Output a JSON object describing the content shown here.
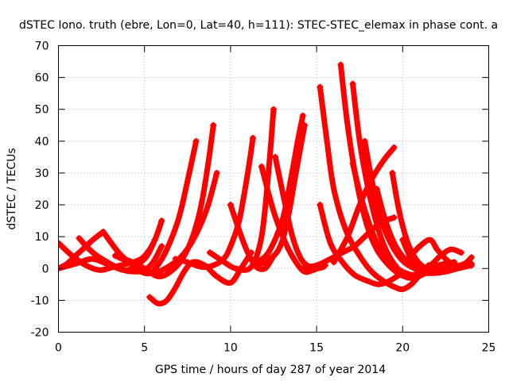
{
  "chart_data": {
    "type": "scatter",
    "title": "dSTEC Iono. truth (ebre, Lon=0, Lat=40, h=111): STEC-STEC_elemax in phase cont. a",
    "xlabel": "GPS time / hours of day 287 of year 2014",
    "ylabel": "dSTEC  / TECUs",
    "xlim": [
      0,
      25
    ],
    "ylim": [
      -20,
      70
    ],
    "xticks": [
      0,
      5,
      10,
      15,
      20,
      25
    ],
    "yticks": [
      -20,
      -10,
      0,
      10,
      20,
      30,
      40,
      50,
      60,
      70
    ],
    "grid": true,
    "legend": "none",
    "marker": "+",
    "color": "#ff0000",
    "series": [
      {
        "x": [
          0.0,
          1.0,
          2.0,
          3.0,
          4.0,
          5.0,
          5.6,
          6.0
        ],
        "y": [
          0,
          1.5,
          3.0,
          1.0,
          -0.5,
          3.0,
          9.0,
          15.0
        ]
      },
      {
        "x": [
          0.0,
          0.8,
          1.6,
          2.4,
          3.2,
          4.0,
          4.8,
          5.3,
          5.6
        ],
        "y": [
          8.0,
          4.0,
          1.0,
          -0.5,
          0.5,
          1.5,
          3.0,
          6.0,
          9.0
        ]
      },
      {
        "x": [
          0.0,
          0.5,
          1.0,
          1.5,
          2.0,
          2.6
        ],
        "y": [
          0,
          1.5,
          4.0,
          6.5,
          9.0,
          11.5
        ]
      },
      {
        "x": [
          1.2,
          2.0,
          3.0,
          3.8,
          4.5,
          5.0,
          5.5,
          6.0
        ],
        "y": [
          9.5,
          5.0,
          1.5,
          -0.5,
          -1.0,
          -0.5,
          2.0,
          7.0
        ]
      },
      {
        "x": [
          2.6,
          3.5,
          4.2,
          4.8,
          5.3,
          5.7,
          6.3,
          7.0,
          7.6,
          8.0
        ],
        "y": [
          11.5,
          5.0,
          1.5,
          -1.0,
          -1.5,
          0.5,
          6.0,
          16.0,
          30.0,
          40.0
        ]
      },
      {
        "x": [
          3.3,
          4.3,
          5.0,
          5.8,
          6.5,
          7.2,
          7.8,
          8.3,
          8.7,
          9.0
        ],
        "y": [
          4.0,
          2.0,
          0.0,
          -2.5,
          -1.0,
          3.0,
          10.0,
          20.0,
          33.0,
          45.0
        ]
      },
      {
        "x": [
          3.5,
          4.5,
          5.0,
          5.5,
          6.2,
          7.0,
          7.6,
          8.2,
          8.7,
          9.2
        ],
        "y": [
          3.5,
          1.0,
          -1.0,
          -1.5,
          0.0,
          3.0,
          7.0,
          13.0,
          20.0,
          30.0
        ]
      },
      {
        "x": [
          5.3,
          5.8,
          6.3,
          6.8,
          7.3,
          7.8,
          8.5,
          9.2,
          10.0,
          10.6,
          11.2
        ],
        "y": [
          -9.0,
          -11.0,
          -10.0,
          -6.0,
          -1.0,
          2.0,
          1.0,
          -2.5,
          -4.5,
          0.0,
          5.0
        ]
      },
      {
        "x": [
          6.8,
          7.5,
          8.3,
          9.0,
          9.6,
          10.0,
          10.5,
          11.0,
          11.3
        ],
        "y": [
          3.0,
          2.0,
          0.5,
          1.0,
          3.0,
          7.0,
          15.0,
          30.0,
          41.0
        ]
      },
      {
        "x": [
          8.8,
          9.5,
          10.3,
          11.2,
          11.8,
          12.2,
          12.5
        ],
        "y": [
          5.0,
          2.5,
          0.0,
          0.5,
          10.0,
          30.0,
          50.0
        ]
      },
      {
        "x": [
          10.0,
          10.5,
          11.0,
          11.5,
          12.0,
          12.4
        ],
        "y": [
          20.0,
          12.0,
          5.0,
          0.5,
          0.0,
          3.0
        ]
      },
      {
        "x": [
          11.8,
          12.5,
          13.2,
          13.8,
          14.3,
          14.8,
          15.5
        ],
        "y": [
          32.0,
          18.0,
          8.0,
          2.0,
          -1.0,
          -0.5,
          1.0
        ]
      },
      {
        "x": [
          12.6,
          13.1,
          13.6,
          14.1,
          14.6,
          15.0,
          15.4
        ],
        "y": [
          35.0,
          22.0,
          10.0,
          3.0,
          0.5,
          0.0,
          0.5
        ]
      },
      {
        "x": [
          11.5,
          12.2,
          13.0,
          13.5,
          13.9,
          14.2
        ],
        "y": [
          2.0,
          5.0,
          15.0,
          28.0,
          40.0,
          48.0
        ]
      },
      {
        "x": [
          11.5,
          12.0,
          12.8,
          13.3,
          13.8,
          14.3
        ],
        "y": [
          1.5,
          2.0,
          6.0,
          15.0,
          30.0,
          45.0
        ]
      },
      {
        "x": [
          14.3,
          15.0,
          15.8,
          16.5,
          17.2,
          17.8,
          18.4,
          19.0,
          19.5
        ],
        "y": [
          0.5,
          1.0,
          3.0,
          5.0,
          7.0,
          10.0,
          13.0,
          15.0,
          16.0
        ]
      },
      {
        "x": [
          15.2,
          15.8,
          16.5,
          17.2,
          18.0,
          18.6,
          19.2,
          19.8
        ],
        "y": [
          20.0,
          8.0,
          2.0,
          -2.0,
          -4.0,
          -5.0,
          -4.0,
          -2.0
        ]
      },
      {
        "x": [
          15.2,
          15.6,
          16.0,
          16.7,
          17.5,
          18.2,
          18.9,
          19.6,
          20.0,
          20.5,
          21.0,
          21.5
        ],
        "y": [
          57.0,
          40.0,
          25.0,
          12.0,
          4.0,
          -1.0,
          -4.0,
          -6.0,
          -6.5,
          -5.0,
          -2.0,
          1.0
        ]
      },
      {
        "x": [
          16.4,
          16.8,
          17.3,
          17.9,
          18.5,
          19.2,
          19.9,
          20.6,
          21.3,
          22.0
        ],
        "y": [
          64.0,
          45.0,
          28.0,
          14.0,
          6.0,
          1.0,
          -2.0,
          -3.0,
          -1.0,
          1.0
        ]
      },
      {
        "x": [
          17.1,
          17.5,
          18.0,
          18.6,
          19.2,
          19.9,
          20.6,
          21.3,
          22.0
        ],
        "y": [
          58.0,
          40.0,
          25.0,
          12.0,
          4.0,
          -1.0,
          -3.0,
          -1.5,
          0.5
        ]
      },
      {
        "x": [
          17.8,
          18.2,
          18.7,
          19.3,
          19.9,
          20.5,
          21.2,
          21.8,
          22.4,
          23.0
        ],
        "y": [
          40.0,
          28.0,
          16.0,
          8.0,
          3.0,
          0.5,
          -0.5,
          0.5,
          1.5,
          2.0
        ]
      },
      {
        "x": [
          17.1,
          17.6,
          18.2,
          18.8,
          19.4,
          20.0,
          20.6,
          21.3,
          22.0,
          22.8
        ],
        "y": [
          33.0,
          22.0,
          12.0,
          5.0,
          1.0,
          -1.0,
          -2.0,
          -1.0,
          0.0,
          1.0
        ]
      },
      {
        "x": [
          18.5,
          19.0,
          19.6,
          20.3,
          21.0,
          21.7,
          22.5,
          23.2,
          24.0
        ],
        "y": [
          25.0,
          15.0,
          7.0,
          2.0,
          -1.0,
          -1.5,
          -1.0,
          0.0,
          1.0
        ]
      },
      {
        "x": [
          19.4,
          19.8,
          20.3,
          20.9,
          21.6,
          22.3,
          23.0,
          23.6,
          24.0
        ],
        "y": [
          30.0,
          18.0,
          8.0,
          2.0,
          -0.5,
          -1.0,
          0.0,
          1.0,
          1.5
        ]
      },
      {
        "x": [
          20.0,
          20.5,
          21.0,
          21.6,
          22.2,
          22.8,
          23.4
        ],
        "y": [
          9.0,
          3.0,
          0.0,
          1.0,
          4.0,
          6.0,
          5.0
        ]
      },
      {
        "x": [
          20.3,
          21.0,
          21.6,
          22.0,
          22.5,
          23.0,
          23.6,
          24.0
        ],
        "y": [
          3.0,
          7.0,
          9.0,
          6.0,
          3.0,
          1.0,
          1.5,
          3.5
        ]
      },
      {
        "x": [
          16.0,
          16.8,
          17.5,
          18.2,
          18.9,
          19.5
        ],
        "y": [
          2.0,
          10.0,
          20.0,
          28.0,
          34.0,
          38.0
        ]
      }
    ]
  }
}
